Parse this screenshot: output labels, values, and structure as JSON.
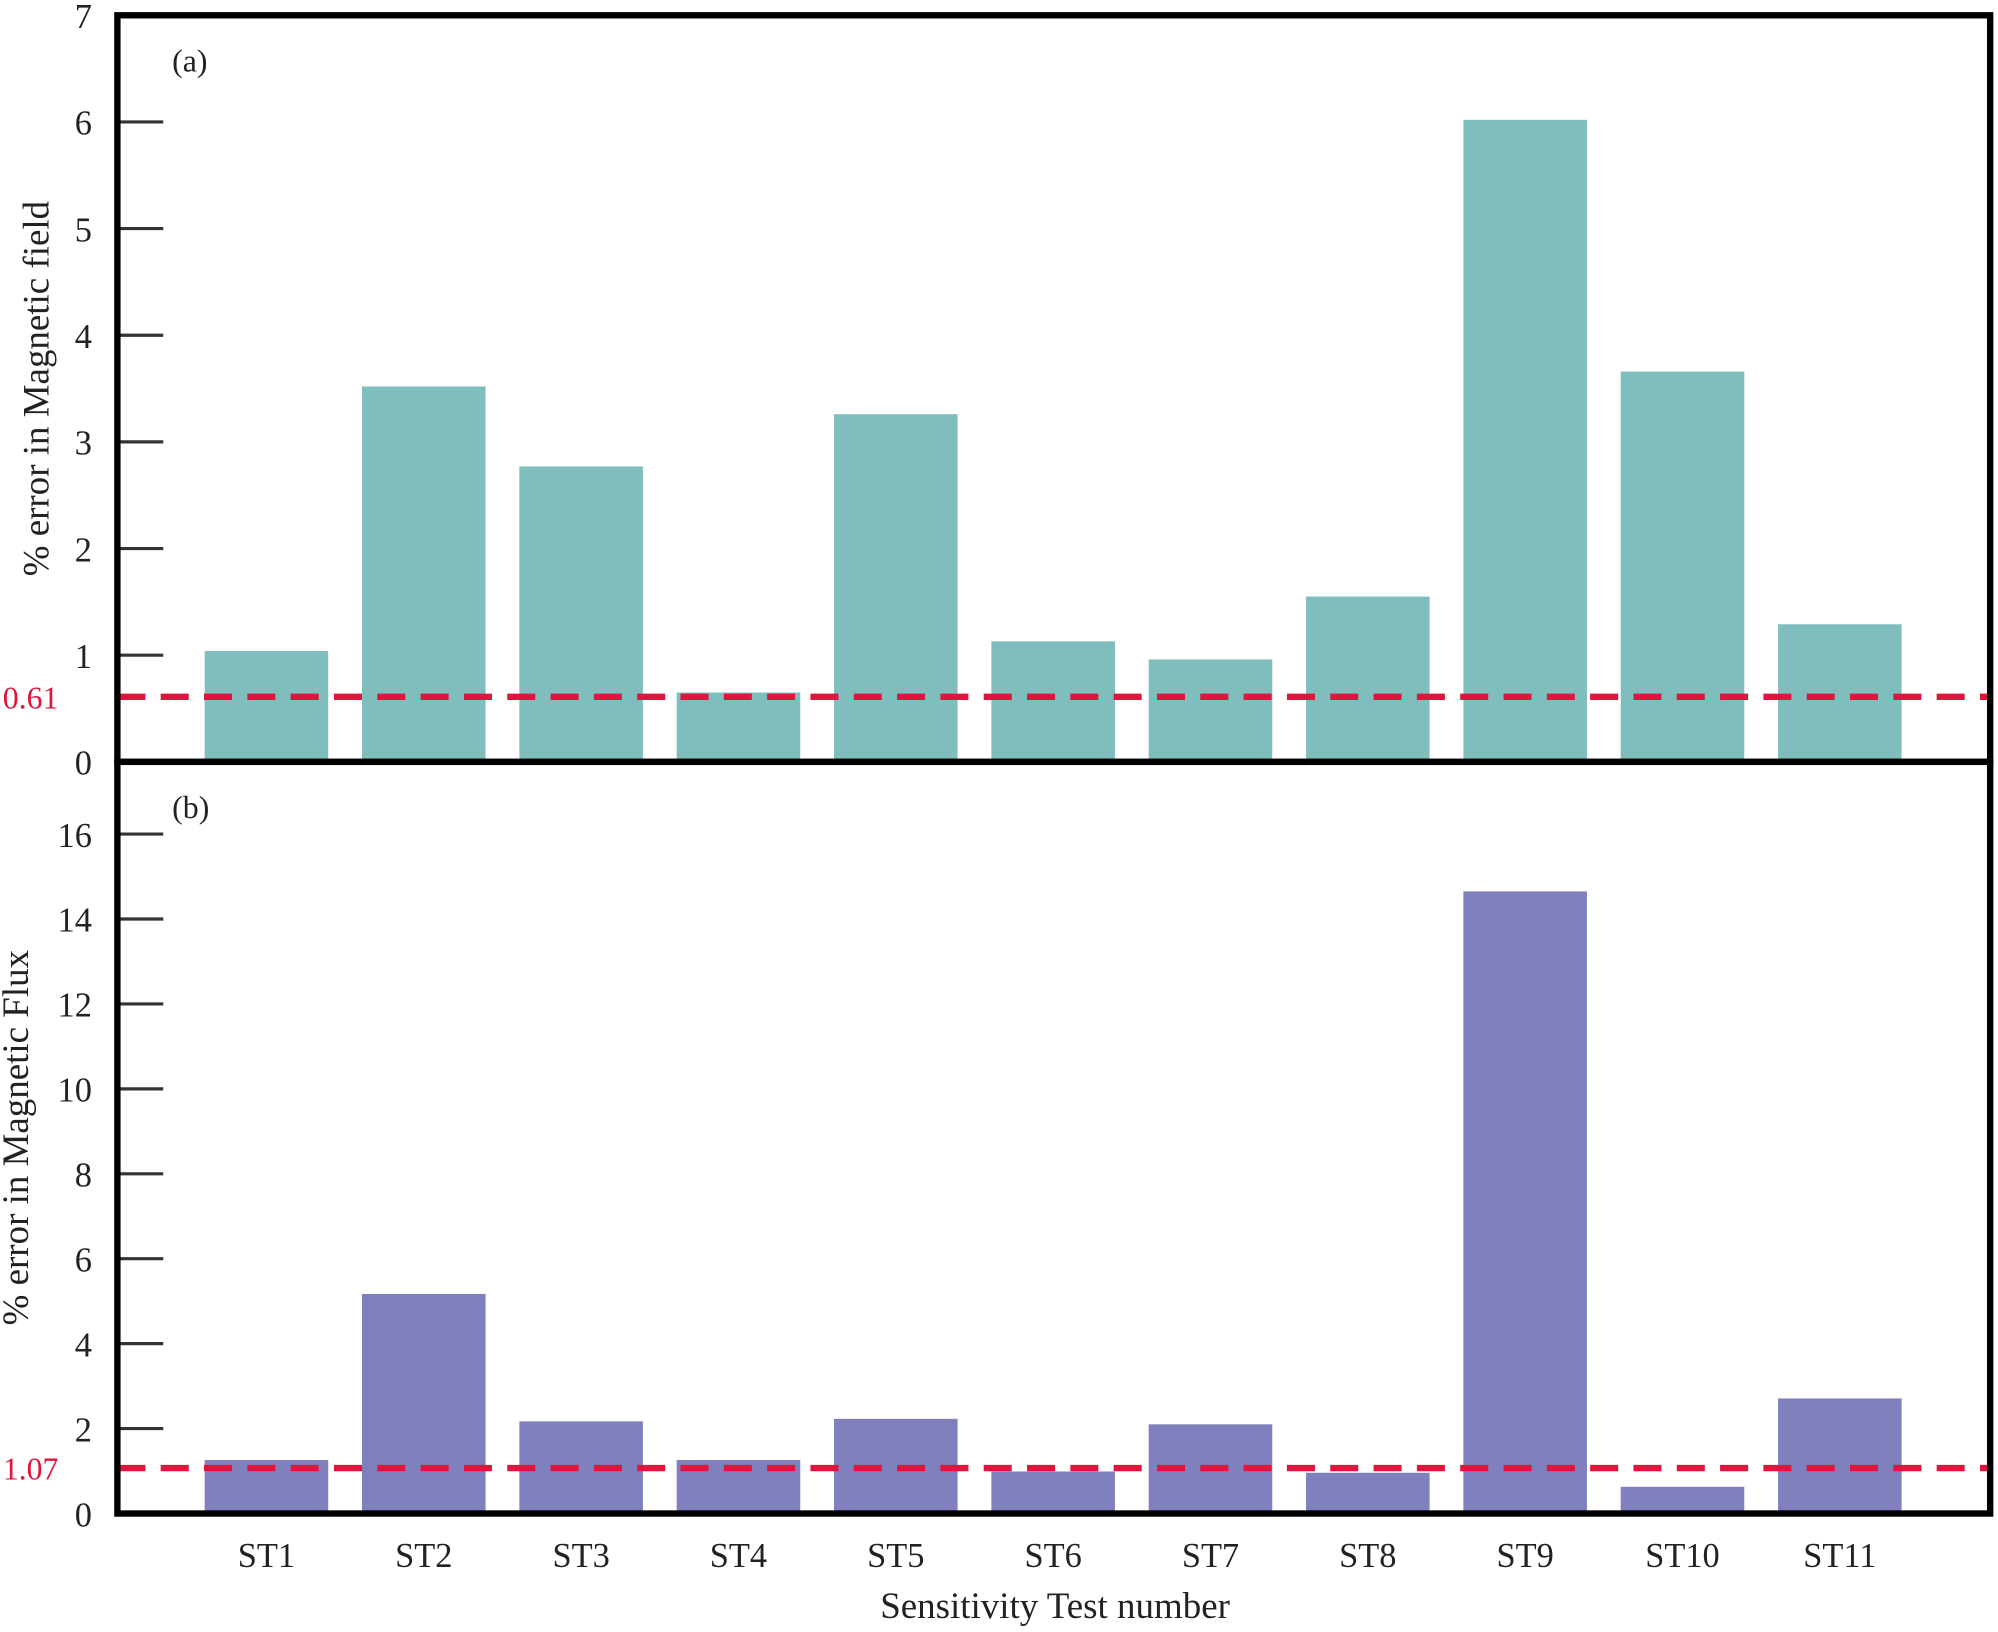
{
  "chart_data": [
    {
      "type": "bar",
      "panel_label": "(a)",
      "categories": [
        "ST1",
        "ST2",
        "ST3",
        "ST4",
        "ST5",
        "ST6",
        "ST7",
        "ST8",
        "ST9",
        "ST10",
        "ST11"
      ],
      "values": [
        1.04,
        3.52,
        2.77,
        0.65,
        3.26,
        1.13,
        0.96,
        1.55,
        6.02,
        3.66,
        1.29
      ],
      "ylabel": "% error in Magnetic field",
      "ylim": [
        0,
        7
      ],
      "yticks": [
        0,
        1,
        2,
        3,
        4,
        5,
        6,
        7
      ],
      "bar_color": "#80bebe",
      "reference_line": {
        "value": 0.61,
        "label": "0.61",
        "color": "#e0143c",
        "style": "dashed"
      },
      "grid": false
    },
    {
      "type": "bar",
      "panel_label": "(b)",
      "categories": [
        "ST1",
        "ST2",
        "ST3",
        "ST4",
        "ST5",
        "ST6",
        "ST7",
        "ST8",
        "ST9",
        "ST10",
        "ST11"
      ],
      "values": [
        1.26,
        5.17,
        2.17,
        1.26,
        2.23,
        0.99,
        2.1,
        0.96,
        14.65,
        0.63,
        2.71
      ],
      "ylabel": "% error in Magnetic Flux",
      "xlabel": "Sensitivity Test number",
      "ylim": [
        0,
        17.7
      ],
      "yticks": [
        0,
        2,
        4,
        6,
        8,
        10,
        12,
        14,
        16
      ],
      "bar_color": "#8080be",
      "reference_line": {
        "value": 1.07,
        "label": "1.07",
        "color": "#e0143c",
        "style": "dashed"
      },
      "grid": false
    }
  ]
}
